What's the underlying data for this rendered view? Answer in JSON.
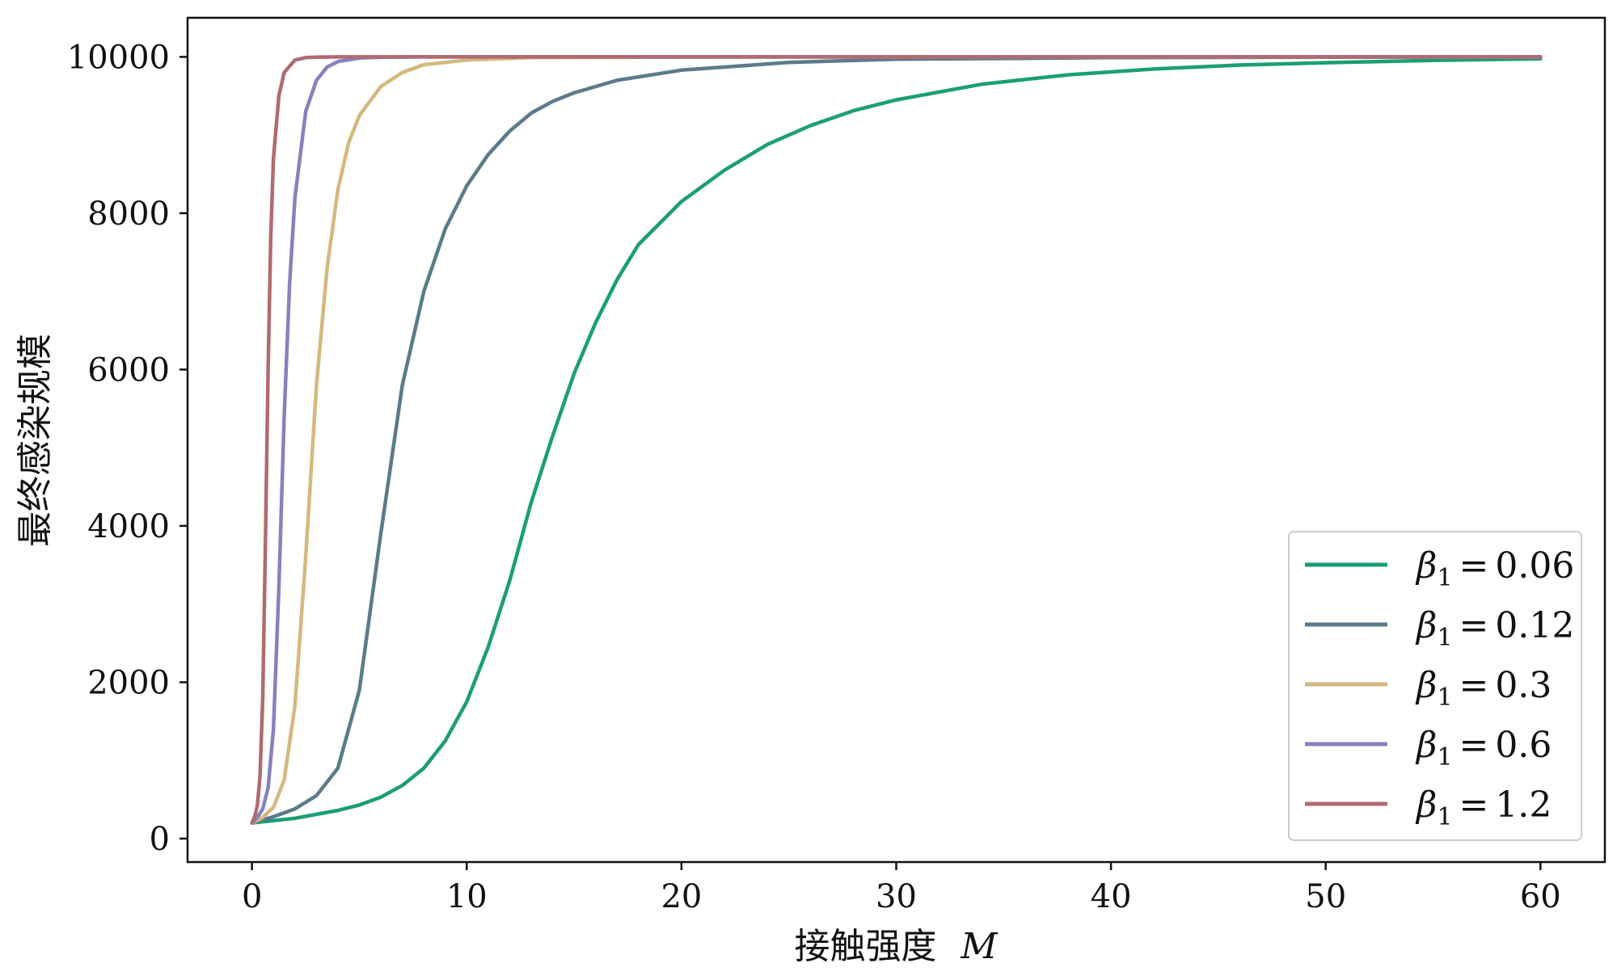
{
  "chart_data": {
    "type": "line",
    "title": "",
    "xlabel": "接触强度",
    "xlabel_symbol": "M",
    "ylabel": "最终感染规模",
    "xlim": [
      -3,
      63
    ],
    "ylim": [
      -300,
      10500
    ],
    "xticks": [
      0,
      10,
      20,
      30,
      40,
      50,
      60
    ],
    "yticks": [
      0,
      2000,
      4000,
      6000,
      8000,
      10000
    ],
    "grid": false,
    "legend_position": "bottom-right",
    "legend_symbol": "β",
    "legend_subscript": "1",
    "legend_operator": "=",
    "series": [
      {
        "name": "0.06",
        "color": "#1b9e77",
        "x": [
          0,
          2,
          4,
          5,
          6,
          7,
          8,
          9,
          10,
          11,
          12,
          13,
          14,
          15,
          16,
          17,
          18,
          20,
          22,
          24,
          26,
          28,
          30,
          34,
          38,
          42,
          46,
          50,
          55,
          60
        ],
        "y": [
          200,
          260,
          360,
          430,
          530,
          680,
          900,
          1250,
          1750,
          2450,
          3300,
          4300,
          5150,
          5950,
          6600,
          7150,
          7600,
          8150,
          8550,
          8880,
          9120,
          9310,
          9450,
          9650,
          9770,
          9845,
          9895,
          9925,
          9955,
          9975
        ]
      },
      {
        "name": "0.12",
        "color": "#5b7b8a",
        "x": [
          0,
          1,
          2,
          3,
          4,
          5,
          6,
          7,
          8,
          9,
          10,
          11,
          12,
          13,
          14,
          15,
          17,
          20,
          25,
          30,
          40,
          50,
          60
        ],
        "y": [
          200,
          280,
          380,
          550,
          900,
          1900,
          3900,
          5800,
          7000,
          7800,
          8350,
          8750,
          9050,
          9280,
          9430,
          9540,
          9700,
          9830,
          9930,
          9970,
          9990,
          9997,
          9999
        ]
      },
      {
        "name": "0.3",
        "color": "#d4b97f",
        "x": [
          0,
          0.5,
          1,
          1.5,
          2,
          2.5,
          3,
          3.5,
          4,
          4.5,
          5,
          6,
          7,
          8,
          10,
          13,
          20,
          30,
          40,
          60
        ],
        "y": [
          200,
          270,
          400,
          750,
          1700,
          3600,
          5800,
          7300,
          8300,
          8900,
          9250,
          9620,
          9800,
          9900,
          9960,
          9990,
          9998,
          10000,
          10000,
          10000
        ]
      },
      {
        "name": "0.6",
        "color": "#8682be",
        "x": [
          0,
          0.25,
          0.5,
          0.75,
          1,
          1.25,
          1.5,
          1.75,
          2,
          2.5,
          3,
          3.5,
          4,
          5,
          6,
          8,
          10,
          20,
          40,
          60
        ],
        "y": [
          200,
          270,
          380,
          650,
          1400,
          3200,
          5400,
          7100,
          8200,
          9300,
          9700,
          9870,
          9940,
          9985,
          9995,
          10000,
          10000,
          10000,
          10000,
          10000
        ]
      },
      {
        "name": "1.2",
        "color": "#b06b70",
        "x": [
          0,
          0.125,
          0.25,
          0.375,
          0.5,
          0.625,
          0.75,
          0.875,
          1,
          1.25,
          1.5,
          2,
          2.5,
          3,
          4,
          6,
          10,
          20,
          40,
          60
        ],
        "y": [
          200,
          280,
          420,
          800,
          1800,
          3800,
          6000,
          7700,
          8700,
          9500,
          9800,
          9960,
          9990,
          9997,
          10000,
          10000,
          10000,
          10000,
          10000,
          10000
        ]
      }
    ]
  }
}
